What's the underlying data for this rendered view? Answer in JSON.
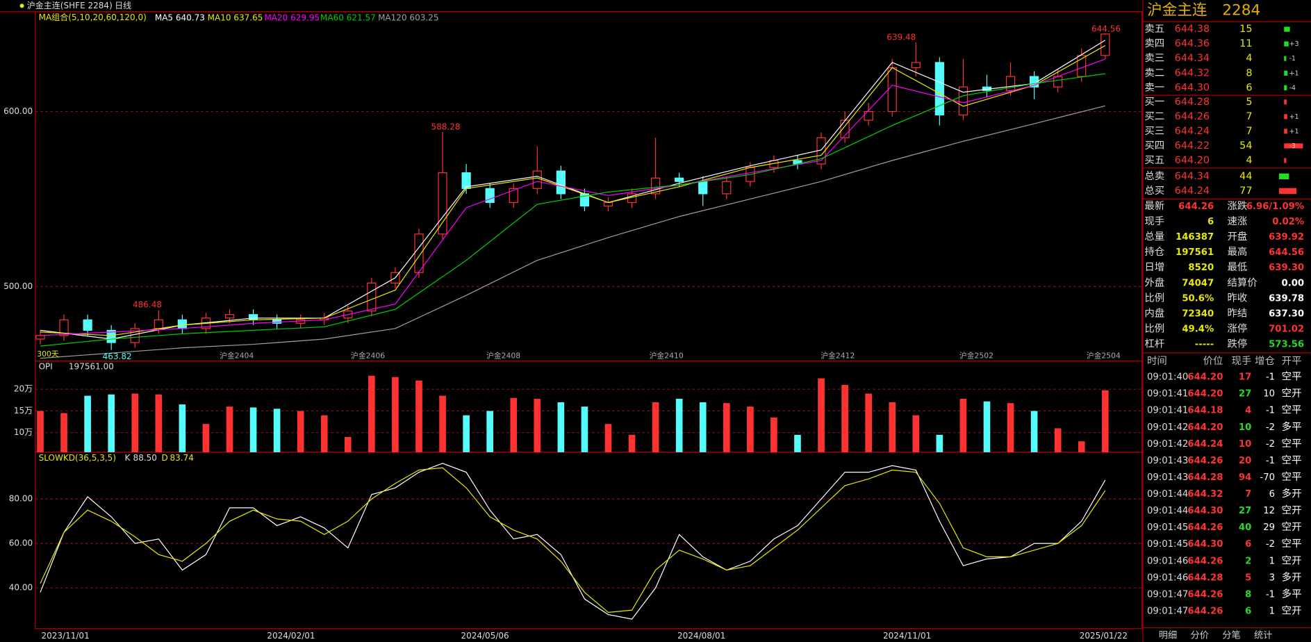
{
  "header": {
    "title": "沪金主连(SHFE 2284)",
    "period": "日线"
  },
  "ma_legend": {
    "label": "MA组合(5,10,20,60,120,0)",
    "items": [
      {
        "name": "MA5",
        "value": "640.73",
        "color": "#ffffff",
        "values": [
          475,
          470,
          478,
          482,
          482,
          505,
          557,
          563,
          548,
          559,
          569,
          578,
          628,
          611,
          616,
          640.73
        ]
      },
      {
        "name": "MA10",
        "value": "637.65",
        "color": "#e8e800",
        "values": [
          474,
          472,
          478,
          481,
          482,
          498,
          556,
          562,
          548,
          557,
          568,
          575,
          625,
          603,
          615,
          637.65
        ]
      },
      {
        "name": "MA20",
        "value": "629.95",
        "color": "#ff00ff",
        "values": [
          472,
          474,
          476,
          479,
          481,
          490,
          545,
          560,
          552,
          558,
          565,
          572,
          615,
          605,
          615,
          629.95
        ]
      },
      {
        "name": "MA60",
        "value": "621.57",
        "color": "#00d000",
        "values": [
          466,
          470,
          473,
          475,
          477,
          487,
          515,
          547,
          554,
          558,
          564,
          573,
          592,
          609,
          616,
          621.57
        ]
      },
      {
        "name": "MA120",
        "value": "603.25",
        "color": "#a0a0a0",
        "values": [
          459,
          462,
          465,
          467,
          470,
          476,
          495,
          515,
          528,
          540,
          550,
          560,
          572,
          583,
          593,
          603.25
        ]
      }
    ]
  },
  "price": {
    "ylim": [
      457.4,
      657
    ],
    "yticks": [
      {
        "value": 500,
        "label": "500.00"
      },
      {
        "value": 600,
        "label": "600.00"
      }
    ],
    "candles": [
      [
        470,
        475,
        467,
        472
      ],
      [
        472,
        484,
        469,
        481
      ],
      [
        481,
        484,
        472,
        475
      ],
      [
        475,
        478,
        463.82,
        468
      ],
      [
        468,
        479,
        465,
        476
      ],
      [
        476,
        486.48,
        473,
        481
      ],
      [
        481,
        484,
        473,
        476
      ],
      [
        476,
        485,
        473,
        482
      ],
      [
        482,
        487,
        479,
        484
      ],
      [
        484,
        487,
        478,
        481
      ],
      [
        481,
        484,
        476,
        479
      ],
      [
        479,
        484,
        476,
        481
      ],
      [
        481,
        485,
        478,
        482
      ],
      [
        482,
        489,
        479,
        486
      ],
      [
        486,
        505,
        483,
        502
      ],
      [
        502,
        511,
        499,
        508
      ],
      [
        508,
        533,
        505,
        530
      ],
      [
        530,
        588.28,
        527,
        565
      ],
      [
        565,
        570,
        553,
        556
      ],
      [
        556,
        559,
        545,
        548
      ],
      [
        548,
        559,
        545,
        556
      ],
      [
        556,
        580,
        553,
        566
      ],
      [
        566,
        569,
        550,
        553
      ],
      [
        553,
        556,
        543,
        546
      ],
      [
        546,
        551,
        543,
        548
      ],
      [
        548,
        556,
        545,
        553
      ],
      [
        553,
        585,
        550,
        562
      ],
      [
        562,
        565,
        557,
        560
      ],
      [
        560,
        563,
        546,
        553
      ],
      [
        553,
        563,
        550,
        560
      ],
      [
        560,
        571,
        557,
        568
      ],
      [
        568,
        575,
        565,
        572
      ],
      [
        572,
        575,
        567,
        570
      ],
      [
        570,
        588,
        567,
        585
      ],
      [
        585,
        600,
        582,
        595
      ],
      [
        595,
        605,
        592,
        600
      ],
      [
        600,
        630,
        597,
        625
      ],
      [
        625,
        639.48,
        620,
        628
      ],
      [
        628,
        631,
        592,
        598
      ],
      [
        598,
        630,
        595,
        614
      ],
      [
        614,
        621,
        608,
        612
      ],
      [
        612,
        628,
        609,
        620
      ],
      [
        620,
        623,
        607,
        614
      ],
      [
        614,
        624,
        611,
        620
      ],
      [
        620,
        636,
        617,
        632
      ],
      [
        632,
        644.56,
        630,
        644.26
      ]
    ],
    "annotations": [
      "588.28",
      "486.48",
      "639.48",
      "644.56",
      "463.82"
    ],
    "period_label": "300天",
    "contracts": [
      "沪金2404",
      "沪金2406",
      "沪金2408",
      "沪金2410",
      "沪金2412",
      "沪金2502",
      "沪金2504"
    ]
  },
  "opi": {
    "name": "OPI",
    "value": "197561.00",
    "ylim": [
      54900,
      264700
    ],
    "yticks": [
      {
        "value": 100000,
        "label": "10万"
      },
      {
        "value": 150000,
        "label": "15万"
      },
      {
        "value": 200000,
        "label": "20万"
      }
    ],
    "values": [
      150000,
      145000,
      185000,
      188000,
      190000,
      188000,
      165000,
      120000,
      160000,
      158000,
      155000,
      150000,
      140000,
      90000,
      231000,
      228000,
      220000,
      185000,
      140000,
      150000,
      180000,
      178000,
      170000,
      160000,
      120000,
      95000,
      170000,
      178000,
      170000,
      168000,
      160000,
      135000,
      95000,
      225000,
      210000,
      190000,
      170000,
      140000,
      95000,
      178000,
      172000,
      168000,
      150000,
      110000,
      80000,
      197561
    ]
  },
  "kd": {
    "label": "SLOWKD(36,5,3,5)",
    "k_label": "K",
    "k_value": "88.50",
    "d_label": "D",
    "d_value": "83.74",
    "ylim": [
      21.7,
      101
    ],
    "yticks": [
      {
        "value": 40,
        "label": "40.00"
      },
      {
        "value": 60,
        "label": "60.00"
      },
      {
        "value": 80,
        "label": "80.00"
      }
    ],
    "k": [
      38,
      65,
      81,
      72,
      60,
      62,
      48,
      55,
      76,
      76,
      68,
      72,
      67,
      58,
      82,
      85,
      92,
      96,
      92,
      75,
      62,
      64,
      55,
      35,
      28,
      26,
      40,
      64,
      54,
      48,
      52,
      62,
      68,
      80,
      92,
      92,
      95,
      93,
      70,
      50,
      53,
      54,
      60,
      60,
      70,
      88.5
    ],
    "d": [
      42,
      65,
      75,
      70,
      63,
      55,
      52,
      60,
      70,
      75,
      71,
      70,
      64,
      70,
      80,
      87,
      93,
      94,
      85,
      72,
      66,
      62,
      52,
      38,
      29,
      30,
      48,
      57,
      53,
      48,
      50,
      58,
      66,
      76,
      86,
      89,
      93,
      92,
      78,
      58,
      54,
      54,
      57,
      60,
      68,
      83.74
    ]
  },
  "dates": [
    "2023/11/01",
    "2024/02/01",
    "2024/05/06",
    "2024/08/01",
    "2024/11/01",
    "2025/01/22"
  ],
  "quote": {
    "title": "沪金主连",
    "code": "2284",
    "asks": [
      {
        "label": "卖五",
        "price": "644.38",
        "vol": 15
      },
      {
        "label": "卖四",
        "price": "644.36",
        "vol": 11,
        "chg": "+3"
      },
      {
        "label": "卖三",
        "price": "644.34",
        "vol": 4,
        "chg": "-1"
      },
      {
        "label": "卖二",
        "price": "644.32",
        "vol": 8,
        "chg": "+1"
      },
      {
        "label": "卖一",
        "price": "644.30",
        "vol": 6,
        "chg": "-4"
      }
    ],
    "bids": [
      {
        "label": "买一",
        "price": "644.28",
        "vol": 5
      },
      {
        "label": "买二",
        "price": "644.26",
        "vol": 7,
        "chg": "+1"
      },
      {
        "label": "买三",
        "price": "644.24",
        "vol": 7,
        "chg": "+1"
      },
      {
        "label": "买四",
        "price": "644.22",
        "vol": 54,
        "chg": "-3"
      },
      {
        "label": "买五",
        "price": "644.20",
        "vol": 4
      }
    ],
    "totals": [
      {
        "label": "总卖",
        "price": "644.34",
        "vol": 44
      },
      {
        "label": "总买",
        "price": "644.24",
        "vol": 77
      }
    ],
    "stats": [
      [
        "最新",
        "644.26",
        "涨跌",
        "6.96/1.09%"
      ],
      [
        "现手",
        "6",
        "速涨",
        "0.02%"
      ],
      [
        "总量",
        "146387",
        "开盘",
        "639.92"
      ],
      [
        "持仓",
        "197561",
        "最高",
        "644.56"
      ],
      [
        "日增",
        "8520",
        "最低",
        "639.30"
      ],
      [
        "外盘",
        "74047",
        "结算价",
        "0.00"
      ],
      [
        "比例",
        "50.6%",
        "昨收",
        "639.78"
      ],
      [
        "内盘",
        "72340",
        "昨结",
        "637.30"
      ],
      [
        "比例",
        "49.4%",
        "涨停",
        "701.02"
      ],
      [
        "杠杆",
        "-----",
        "跌停",
        "573.56"
      ]
    ]
  },
  "ticks": {
    "columns": [
      "时间",
      "价位",
      "现手",
      "增仓",
      "开平"
    ],
    "rows": [
      [
        "09:01:40",
        "644.20",
        17,
        -1,
        "空平"
      ],
      [
        "09:01:41",
        "644.20",
        27,
        10,
        "空开"
      ],
      [
        "09:01:41",
        "644.18",
        4,
        -1,
        "空平"
      ],
      [
        "09:01:42",
        "644.20",
        10,
        -2,
        "多平"
      ],
      [
        "09:01:42",
        "644.24",
        10,
        -2,
        "空平"
      ],
      [
        "09:01:43",
        "644.26",
        20,
        -1,
        "空平"
      ],
      [
        "09:01:43",
        "644.28",
        94,
        -70,
        "空平"
      ],
      [
        "09:01:44",
        "644.32",
        7,
        6,
        "多开"
      ],
      [
        "09:01:44",
        "644.30",
        27,
        12,
        "空开"
      ],
      [
        "09:01:45",
        "644.26",
        40,
        29,
        "空开"
      ],
      [
        "09:01:45",
        "644.30",
        6,
        -2,
        "空平"
      ],
      [
        "09:01:46",
        "644.26",
        2,
        1,
        "空开"
      ],
      [
        "09:01:46",
        "644.28",
        5,
        3,
        "多开"
      ],
      [
        "09:01:47",
        "644.26",
        8,
        -1,
        "多平"
      ],
      [
        "09:01:47",
        "644.26",
        6,
        1,
        "空开"
      ]
    ],
    "vol_colors": [
      "#ff3232",
      "#22dd22",
      "#ff3232",
      "#22dd22",
      "#ff3232",
      "#ff3232",
      "#ff3232",
      "#ff3232",
      "#22dd22",
      "#22dd22",
      "#ff3232",
      "#22dd22",
      "#ff3232",
      "#22dd22",
      "#22dd22"
    ]
  },
  "tabs": [
    "明细",
    "分价",
    "分笔",
    "统计"
  ]
}
